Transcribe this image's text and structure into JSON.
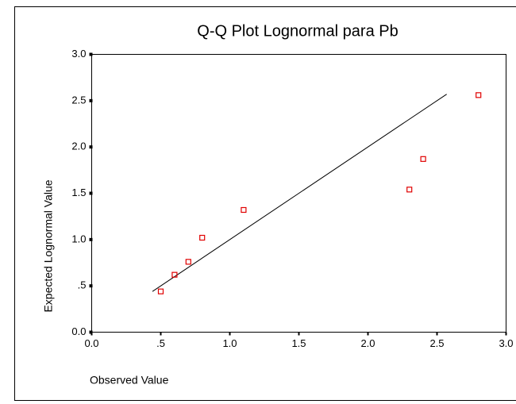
{
  "chart_data": {
    "type": "scatter",
    "title": "Q-Q Plot Lognormal para Pb",
    "xlabel": "Observed Value",
    "ylabel": "Expected Lognormal Value",
    "x": [
      0.5,
      0.6,
      0.7,
      0.8,
      1.1,
      2.3,
      2.4,
      2.8
    ],
    "values": [
      0.44,
      0.62,
      0.76,
      1.02,
      1.32,
      1.54,
      1.87,
      2.56
    ],
    "color": "#e00000",
    "reference_line": {
      "x": [
        0.44,
        2.57
      ],
      "values": [
        0.44,
        2.57
      ]
    },
    "xlim": [
      0,
      3
    ],
    "ylim": [
      0,
      3
    ],
    "xticks": [
      {
        "value": 0,
        "label": "0.0"
      },
      {
        "value": 0.5,
        "label": ".5"
      },
      {
        "value": 1,
        "label": "1.0"
      },
      {
        "value": 1.5,
        "label": "1.5"
      },
      {
        "value": 2,
        "label": "2.0"
      },
      {
        "value": 2.5,
        "label": "2.5"
      },
      {
        "value": 3,
        "label": "3.0"
      }
    ],
    "yticks": [
      {
        "value": 0,
        "label": "0.0"
      },
      {
        "value": 0.5,
        "label": ".5"
      },
      {
        "value": 1,
        "label": "1.0"
      },
      {
        "value": 1.5,
        "label": "1.5"
      },
      {
        "value": 2,
        "label": "2.0"
      },
      {
        "value": 2.5,
        "label": "2.5"
      },
      {
        "value": 3,
        "label": "3.0"
      }
    ]
  }
}
